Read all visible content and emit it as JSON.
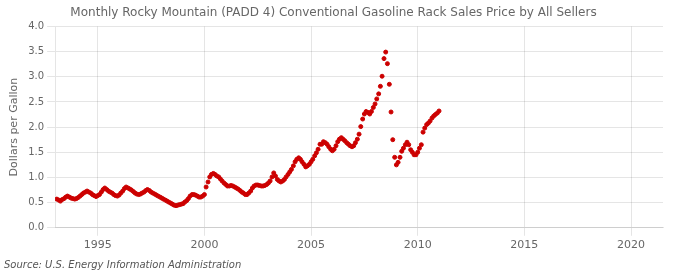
{
  "chart_data": {
    "type": "scatter",
    "title": "Monthly Rocky Mountain (PADD 4) Conventional Gasoline Rack Sales Price by All Sellers",
    "ylabel": "Dollars per Gallon",
    "annotations": [
      "Source: U.S. Energy Information Administration"
    ],
    "color": "#cc0000",
    "grid": true,
    "xlim": [
      1993.0,
      2021.5
    ],
    "xticks": [
      1995,
      2000,
      2005,
      2010,
      2015,
      2020
    ],
    "ylim": [
      0.0,
      4.0
    ],
    "yticks": [
      {
        "value": 0.0,
        "label": "0.0"
      },
      0.5,
      {
        "value": 1.0,
        "label": "1.0"
      },
      1.5,
      {
        "value": 2.0,
        "label": "2.0"
      },
      2.5,
      {
        "value": 3.0,
        "label": "3.0"
      },
      3.5,
      {
        "value": 4.0,
        "label": "4.0"
      }
    ],
    "x": [
      1993.08,
      1993.17,
      1993.25,
      1993.33,
      1993.42,
      1993.5,
      1993.58,
      1993.67,
      1993.75,
      1993.83,
      1993.92,
      1994.0,
      1994.08,
      1994.17,
      1994.25,
      1994.33,
      1994.42,
      1994.5,
      1994.58,
      1994.67,
      1994.75,
      1994.83,
      1994.92,
      1995.0,
      1995.08,
      1995.17,
      1995.25,
      1995.33,
      1995.42,
      1995.5,
      1995.58,
      1995.67,
      1995.75,
      1995.83,
      1995.92,
      1996.0,
      1996.08,
      1996.17,
      1996.25,
      1996.33,
      1996.42,
      1996.5,
      1996.58,
      1996.67,
      1996.75,
      1996.83,
      1996.92,
      1997.0,
      1997.08,
      1997.17,
      1997.25,
      1997.33,
      1997.42,
      1997.5,
      1997.58,
      1997.67,
      1997.75,
      1997.83,
      1997.92,
      1998.0,
      1998.08,
      1998.17,
      1998.25,
      1998.33,
      1998.42,
      1998.5,
      1998.58,
      1998.67,
      1998.75,
      1998.83,
      1998.92,
      1999.0,
      1999.08,
      1999.17,
      1999.25,
      1999.33,
      1999.42,
      1999.5,
      1999.58,
      1999.67,
      1999.75,
      1999.83,
      1999.92,
      2000.0,
      2000.08,
      2000.17,
      2000.25,
      2000.33,
      2000.42,
      2000.5,
      2000.58,
      2000.67,
      2000.75,
      2000.83,
      2000.92,
      2001.0,
      2001.08,
      2001.17,
      2001.25,
      2001.33,
      2001.42,
      2001.5,
      2001.58,
      2001.67,
      2001.75,
      2001.83,
      2001.92,
      2002.0,
      2002.08,
      2002.17,
      2002.25,
      2002.33,
      2002.42,
      2002.5,
      2002.58,
      2002.67,
      2002.75,
      2002.83,
      2002.92,
      2003.0,
      2003.08,
      2003.17,
      2003.25,
      2003.33,
      2003.42,
      2003.5,
      2003.58,
      2003.67,
      2003.75,
      2003.83,
      2003.92,
      2004.0,
      2004.08,
      2004.17,
      2004.25,
      2004.33,
      2004.42,
      2004.5,
      2004.58,
      2004.67,
      2004.75,
      2004.83,
      2004.92,
      2005.0,
      2005.08,
      2005.17,
      2005.25,
      2005.33,
      2005.42,
      2005.5,
      2005.58,
      2005.67,
      2005.75,
      2005.83,
      2005.92,
      2006.0,
      2006.08,
      2006.17,
      2006.25,
      2006.33,
      2006.42,
      2006.5,
      2006.58,
      2006.67,
      2006.75,
      2006.83,
      2006.92,
      2007.0,
      2007.08,
      2007.17,
      2007.25,
      2007.33,
      2007.42,
      2007.5,
      2007.58,
      2007.67,
      2007.75,
      2007.83,
      2007.92,
      2008.0,
      2008.08,
      2008.17,
      2008.25,
      2008.33,
      2008.42,
      2008.5,
      2008.58,
      2008.67,
      2008.75,
      2008.83,
      2008.92,
      2009.0,
      2009.08,
      2009.17,
      2009.25,
      2009.33,
      2009.42,
      2009.5,
      2009.58,
      2009.67,
      2009.75,
      2009.83,
      2009.92,
      2010.0,
      2010.08,
      2010.17,
      2010.25,
      2010.33,
      2010.42,
      2010.5,
      2010.58,
      2010.67,
      2010.75,
      2010.83,
      2010.92,
      2011.0
    ],
    "values": [
      0.57,
      0.55,
      0.53,
      0.56,
      0.58,
      0.61,
      0.63,
      0.61,
      0.59,
      0.58,
      0.57,
      0.58,
      0.6,
      0.63,
      0.66,
      0.69,
      0.71,
      0.73,
      0.71,
      0.69,
      0.66,
      0.64,
      0.62,
      0.64,
      0.66,
      0.71,
      0.76,
      0.79,
      0.76,
      0.73,
      0.71,
      0.69,
      0.66,
      0.64,
      0.63,
      0.65,
      0.69,
      0.73,
      0.78,
      0.81,
      0.79,
      0.77,
      0.75,
      0.72,
      0.69,
      0.67,
      0.66,
      0.67,
      0.69,
      0.71,
      0.74,
      0.76,
      0.74,
      0.71,
      0.69,
      0.67,
      0.65,
      0.63,
      0.61,
      0.59,
      0.57,
      0.55,
      0.53,
      0.51,
      0.49,
      0.47,
      0.45,
      0.44,
      0.45,
      0.46,
      0.47,
      0.48,
      0.51,
      0.54,
      0.58,
      0.63,
      0.66,
      0.66,
      0.65,
      0.63,
      0.61,
      0.61,
      0.63,
      0.66,
      0.81,
      0.91,
      1.01,
      1.06,
      1.08,
      1.06,
      1.03,
      1.01,
      0.97,
      0.93,
      0.89,
      0.86,
      0.83,
      0.83,
      0.84,
      0.83,
      0.81,
      0.79,
      0.77,
      0.74,
      0.71,
      0.69,
      0.66,
      0.66,
      0.69,
      0.73,
      0.79,
      0.83,
      0.85,
      0.85,
      0.84,
      0.83,
      0.83,
      0.84,
      0.86,
      0.89,
      0.93,
      1.01,
      1.09,
      1.03,
      0.96,
      0.93,
      0.91,
      0.93,
      0.96,
      1.01,
      1.06,
      1.11,
      1.16,
      1.23,
      1.31,
      1.36,
      1.39,
      1.36,
      1.31,
      1.26,
      1.21,
      1.23,
      1.26,
      1.31,
      1.36,
      1.43,
      1.49,
      1.56,
      1.66,
      1.66,
      1.71,
      1.69,
      1.66,
      1.61,
      1.56,
      1.53,
      1.56,
      1.63,
      1.71,
      1.76,
      1.79,
      1.76,
      1.73,
      1.69,
      1.66,
      1.63,
      1.61,
      1.63,
      1.69,
      1.76,
      1.86,
      2.01,
      2.16,
      2.26,
      2.31,
      2.29,
      2.26,
      2.31,
      2.39,
      2.46,
      2.56,
      2.66,
      2.81,
      3.01,
      3.36,
      3.49,
      3.26,
      2.85,
      2.3,
      1.75,
      1.4,
      1.25,
      1.3,
      1.4,
      1.52,
      1.58,
      1.65,
      1.7,
      1.65,
      1.55,
      1.5,
      1.45,
      1.45,
      1.5,
      1.58,
      1.65,
      1.9,
      1.98,
      2.05,
      2.08,
      2.12,
      2.18,
      2.22,
      2.25,
      2.28,
      2.32
    ]
  }
}
